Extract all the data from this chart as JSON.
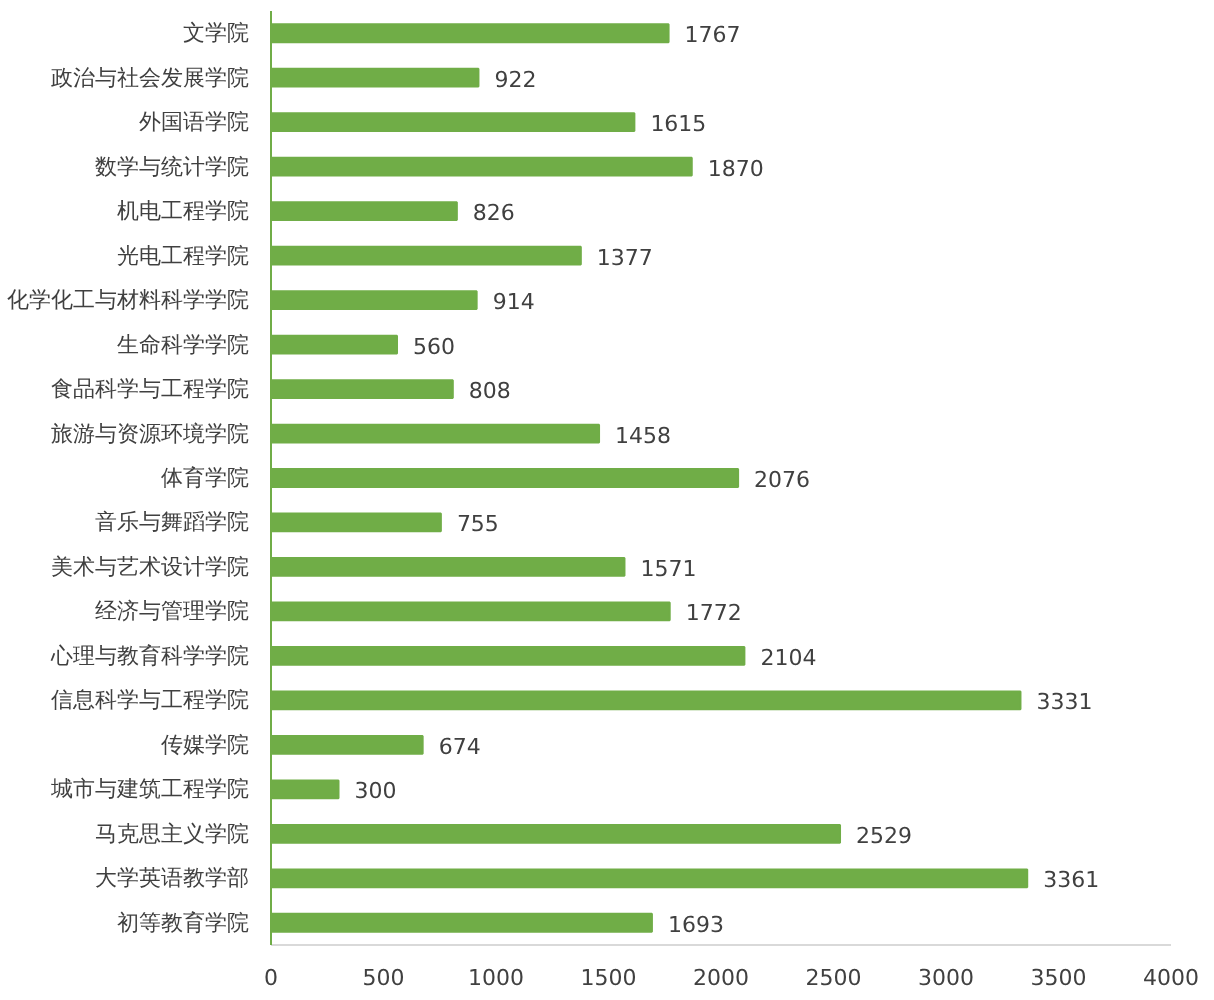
{
  "chart_data": {
    "type": "bar",
    "orientation": "horizontal",
    "categories": [
      "文学院",
      "政治与社会发展学院",
      "外国语学院",
      "数学与统计学院",
      "机电工程学院",
      "光电工程学院",
      "化学化工与材料科学学院",
      "生命科学学院",
      "食品科学与工程学院",
      "旅游与资源环境学院",
      "体育学院",
      "音乐与舞蹈学院",
      "美术与艺术设计学院",
      "经济与管理学院",
      "心理与教育科学学院",
      "信息科学与工程学院",
      "传媒学院",
      "城市与建筑工程学院",
      "马克思主义学院",
      "大学英语教学部",
      "初等教育学院"
    ],
    "values": [
      1767,
      922,
      1615,
      1870,
      826,
      1377,
      914,
      560,
      808,
      1458,
      2076,
      755,
      1571,
      1772,
      2104,
      3331,
      674,
      300,
      2529,
      3361,
      1693
    ],
    "color": "#70ad47",
    "xlim": [
      0,
      4000
    ],
    "xticks": [
      0,
      500,
      1000,
      1500,
      2000,
      2500,
      3000,
      3500,
      4000
    ],
    "grid": false,
    "data_labels": true
  }
}
